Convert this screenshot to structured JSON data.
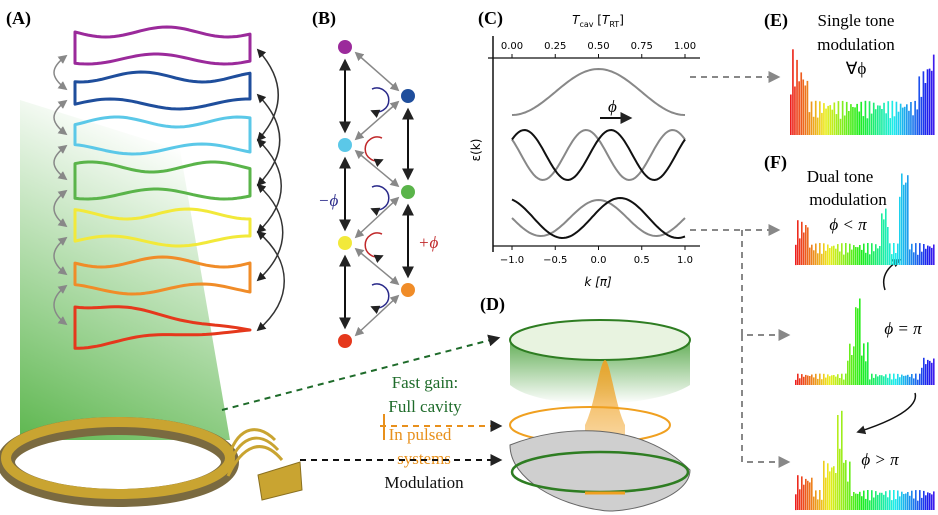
{
  "panel_labels": [
    "(A)",
    "(B)",
    "(C)",
    "(D)",
    "(E)",
    "(F)"
  ],
  "panel_b": {
    "minus_phi": "−ϕ",
    "plus_phi": "+ϕ"
  },
  "panel_c": {
    "phi": "ϕ",
    "x_top_label": [
      "T",
      "cav",
      " [",
      "T",
      "RT",
      "]"
    ],
    "x_top_lim": [
      0,
      1
    ],
    "x_top_ticks": [
      {
        "value": 0,
        "label": "0.00"
      },
      0.25,
      {
        "value": 0.5,
        "label": "0.50"
      },
      0.75,
      {
        "value": 1,
        "label": "1.00"
      }
    ],
    "x_label": "k [π]",
    "x_lim": [
      -1,
      1
    ],
    "x_ticks": [
      {
        "value": -1,
        "label": "−1.0"
      },
      {
        "value": -0.5,
        "label": "−0.5"
      },
      {
        "value": 0,
        "label": "0.0"
      },
      0.5,
      {
        "value": 1,
        "label": "1.0"
      }
    ],
    "y_label": "ε(k)"
  },
  "panel_d": {
    "fast_gain": [
      "Fast gain:",
      "Full cavity"
    ],
    "pulsed": [
      "In pulsed",
      "systems"
    ],
    "modulation": "Modulation"
  },
  "panel_e": {
    "title": [
      "Single tone",
      "modulation"
    ],
    "condition": "∀ϕ"
  },
  "panel_f": {
    "title": [
      "Dual tone",
      "modulation"
    ],
    "conditions": [
      "ϕ < π",
      "ϕ = π",
      "ϕ > π"
    ]
  }
}
